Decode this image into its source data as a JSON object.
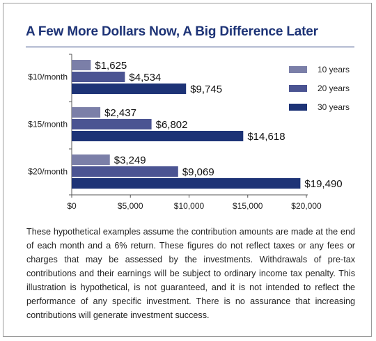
{
  "title": "A Few More Dollars Now, A Big Difference Later",
  "caption": "These hypothetical examples assume the contribution amounts are made at the end of each month and a 6% return. These figures do not reflect taxes or any fees or charges that may be assessed by the investments. Withdrawals of pre-tax contributions and their earnings will be subject to ordinary income tax penalty. This illustration is hypothetical, is not guaranteed, and it is not intended to reflect the performance of any specific investment. There is no assurance that increasing contributions will generate investment success.",
  "colors": {
    "title": "#1d3376",
    "series_10": "#7b7fa8",
    "series_20": "#4b5492",
    "series_30": "#1d3376"
  },
  "chart_data": {
    "type": "bar",
    "orientation": "horizontal",
    "categories": [
      "$10/month",
      "$15/month",
      "$20/month"
    ],
    "series": [
      {
        "name": "10 years",
        "values": [
          1625,
          2437,
          3249
        ],
        "labels": [
          "$1,625",
          "$2,437",
          "$3,249"
        ]
      },
      {
        "name": "20 years",
        "values": [
          4534,
          6802,
          9069
        ],
        "labels": [
          "$4,534",
          "$6,802",
          "$9,069"
        ]
      },
      {
        "name": "30 years",
        "values": [
          9745,
          14618,
          19490
        ],
        "labels": [
          "$9,745",
          "$14,618",
          "$19,490"
        ]
      }
    ],
    "xlim": [
      0,
      20000
    ],
    "xticks": [
      0,
      5000,
      10000,
      15000,
      20000
    ],
    "xtick_labels": [
      "$0",
      "$5,000",
      "$10,000",
      "$15,000",
      "$20,000"
    ],
    "legend_position": "top-right",
    "grid": false
  }
}
